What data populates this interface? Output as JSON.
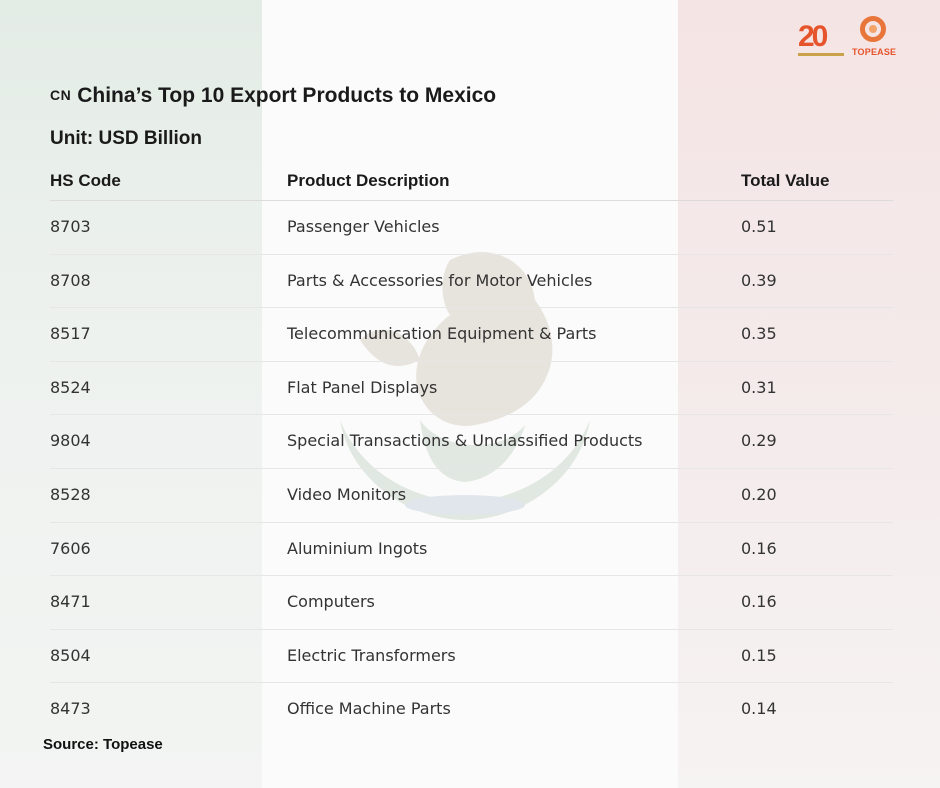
{
  "branding": {
    "anniversary_number": "20",
    "company_name": "TOPEASE",
    "accent_color": "#e6542b"
  },
  "header": {
    "flag_code": "CN",
    "title": "China’s Top 10 Export Products to Mexico",
    "unit": "Unit: USD Billion"
  },
  "table": {
    "columns": [
      "HS Code",
      "Product Description",
      "Total Value"
    ],
    "rows": [
      {
        "code": "8703",
        "description": "Passenger Vehicles",
        "value": "0.51"
      },
      {
        "code": "8708",
        "description": "Parts & Accessories for Motor Vehicles",
        "value": "0.39"
      },
      {
        "code": "8517",
        "description": "Telecommunication Equipment & Parts",
        "value": "0.35"
      },
      {
        "code": "8524",
        "description": "Flat Panel Displays",
        "value": "0.31"
      },
      {
        "code": "9804",
        "description": "Special Transactions & Unclassified Products",
        "value": "0.29"
      },
      {
        "code": "8528",
        "description": "Video Monitors",
        "value": "0.20"
      },
      {
        "code": "7606",
        "description": "Aluminium Ingots",
        "value": "0.16"
      },
      {
        "code": "8471",
        "description": "Computers",
        "value": "0.16"
      },
      {
        "code": "8504",
        "description": "Electric Transformers",
        "value": "0.15"
      },
      {
        "code": "8473",
        "description": "Office Machine Parts",
        "value": "0.14"
      }
    ]
  },
  "footer": {
    "source": "Source: Topease"
  },
  "colors": {
    "flag_green": "#e4ece6",
    "flag_red": "#f5e4e4"
  }
}
